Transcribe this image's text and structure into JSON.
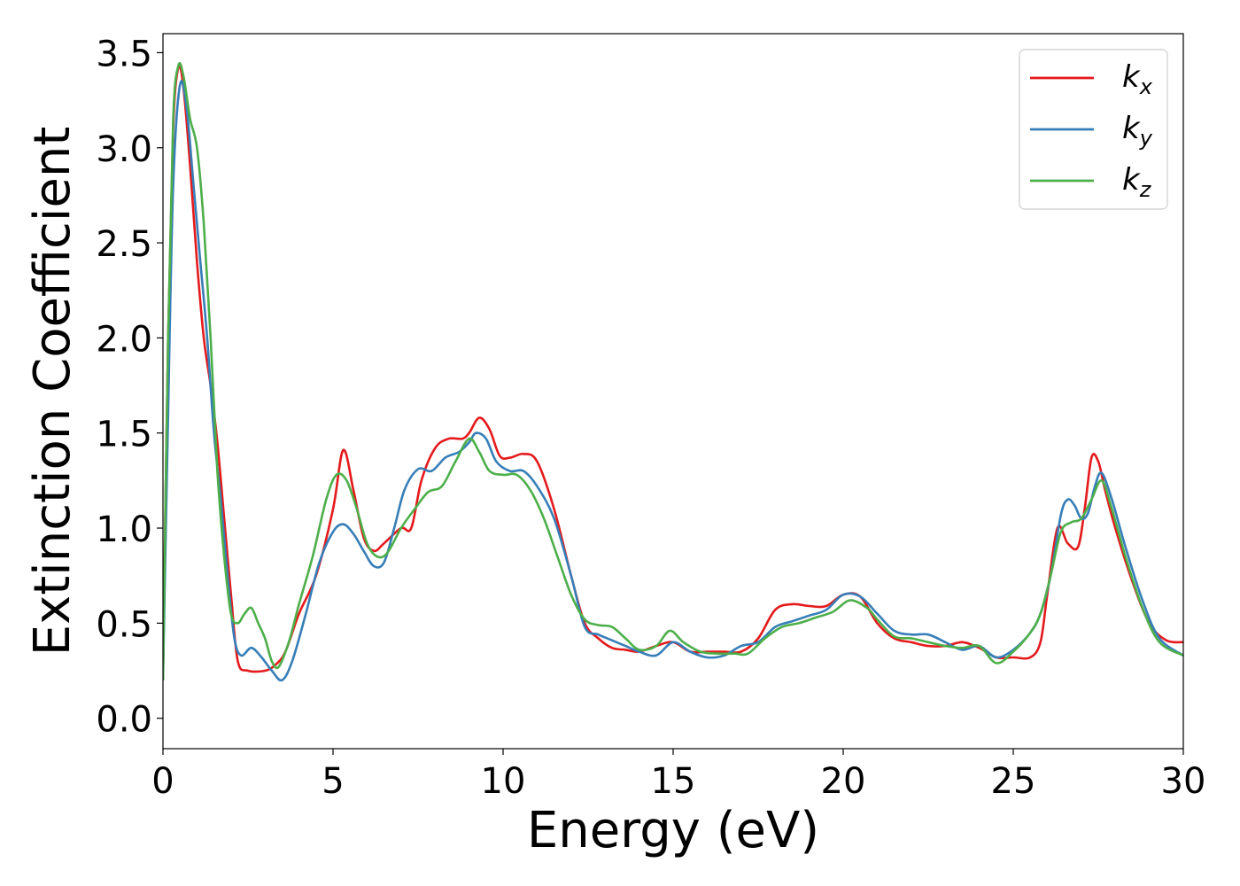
{
  "chart_data": {
    "type": "line",
    "title": "",
    "xlabel": "Energy (eV)",
    "ylabel": "Extinction Coefficient",
    "xlim": [
      0,
      30
    ],
    "ylim": [
      -0.16,
      3.6
    ],
    "xticks": [
      0,
      5,
      10,
      15,
      20,
      25,
      30
    ],
    "yticks": [
      0.0,
      0.5,
      1.0,
      1.5,
      2.0,
      2.5,
      3.0,
      3.5
    ],
    "xtick_labels": [
      "0",
      "5",
      "10",
      "15",
      "20",
      "25",
      "30"
    ],
    "ytick_labels": [
      "0.0",
      "0.5",
      "1.0",
      "1.5",
      "2.0",
      "2.5",
      "3.0",
      "3.5"
    ],
    "grid": false,
    "legend_position": "top-right",
    "series": [
      {
        "name": "k_x",
        "color": "#e41a1c",
        "x": [
          0,
          0.15,
          0.3,
          0.45,
          0.6,
          0.8,
          1.0,
          1.2,
          1.4,
          1.6,
          1.8,
          2.0,
          2.2,
          2.5,
          3.0,
          3.3,
          3.6,
          4.0,
          4.5,
          5.0,
          5.3,
          5.6,
          5.9,
          6.2,
          6.5,
          7.0,
          7.3,
          7.6,
          8.0,
          8.4,
          8.8,
          9.0,
          9.3,
          9.6,
          9.9,
          10.2,
          10.6,
          11.0,
          11.5,
          12.0,
          12.4,
          12.8,
          13.2,
          13.6,
          14.0,
          14.5,
          15.0,
          15.5,
          16.0,
          16.5,
          17.0,
          17.5,
          18.0,
          18.5,
          19.0,
          19.5,
          20.0,
          20.5,
          21.0,
          21.5,
          22.0,
          22.5,
          23.0,
          23.5,
          24.0,
          24.5,
          25.0,
          25.5,
          25.8,
          26.0,
          26.3,
          26.6,
          26.9,
          27.1,
          27.3,
          27.5,
          27.7,
          28.0,
          28.5,
          29.0,
          29.5,
          30.0
        ],
        "values": [
          0.2,
          2.0,
          3.1,
          3.42,
          3.32,
          2.9,
          2.4,
          2.0,
          1.75,
          1.45,
          1.05,
          0.65,
          0.3,
          0.25,
          0.25,
          0.28,
          0.35,
          0.55,
          0.75,
          1.1,
          1.41,
          1.2,
          0.95,
          0.88,
          0.92,
          1.0,
          1.0,
          1.25,
          1.42,
          1.47,
          1.47,
          1.5,
          1.58,
          1.52,
          1.38,
          1.37,
          1.39,
          1.35,
          1.1,
          0.75,
          0.5,
          0.42,
          0.37,
          0.36,
          0.35,
          0.38,
          0.4,
          0.35,
          0.35,
          0.35,
          0.35,
          0.42,
          0.57,
          0.6,
          0.59,
          0.59,
          0.65,
          0.64,
          0.5,
          0.42,
          0.4,
          0.38,
          0.38,
          0.4,
          0.37,
          0.32,
          0.32,
          0.32,
          0.4,
          0.65,
          1.0,
          0.92,
          0.9,
          1.1,
          1.37,
          1.35,
          1.2,
          1.0,
          0.72,
          0.5,
          0.41,
          0.4
        ]
      },
      {
        "name": "k_y",
        "color": "#377eb8",
        "x": [
          0,
          0.15,
          0.3,
          0.5,
          0.7,
          0.9,
          1.1,
          1.3,
          1.5,
          1.7,
          1.9,
          2.1,
          2.3,
          2.6,
          2.9,
          3.2,
          3.5,
          3.8,
          4.2,
          4.6,
          5.0,
          5.3,
          5.6,
          5.9,
          6.2,
          6.5,
          6.8,
          7.1,
          7.5,
          7.9,
          8.3,
          8.7,
          9.0,
          9.2,
          9.5,
          9.8,
          10.2,
          10.6,
          11.0,
          11.5,
          12.0,
          12.4,
          12.8,
          13.2,
          13.6,
          14.0,
          14.5,
          15.0,
          15.5,
          16.0,
          16.5,
          17.0,
          17.5,
          18.0,
          18.5,
          19.0,
          19.5,
          20.0,
          20.5,
          21.0,
          21.5,
          22.0,
          22.5,
          23.0,
          23.5,
          24.0,
          24.5,
          25.0,
          25.5,
          25.8,
          26.1,
          26.4,
          26.6,
          26.8,
          27.0,
          27.2,
          27.4,
          27.6,
          27.9,
          28.3,
          28.8,
          29.3,
          30.0
        ],
        "values": [
          0.2,
          1.6,
          2.8,
          3.33,
          3.2,
          2.8,
          2.4,
          2.0,
          1.5,
          1.15,
          0.75,
          0.42,
          0.33,
          0.37,
          0.32,
          0.25,
          0.2,
          0.3,
          0.55,
          0.82,
          0.98,
          1.02,
          0.97,
          0.88,
          0.8,
          0.82,
          1.0,
          1.2,
          1.31,
          1.3,
          1.37,
          1.4,
          1.45,
          1.5,
          1.47,
          1.35,
          1.3,
          1.3,
          1.22,
          1.05,
          0.75,
          0.48,
          0.44,
          0.41,
          0.38,
          0.35,
          0.33,
          0.4,
          0.35,
          0.32,
          0.33,
          0.38,
          0.4,
          0.48,
          0.51,
          0.54,
          0.57,
          0.65,
          0.64,
          0.55,
          0.46,
          0.44,
          0.44,
          0.4,
          0.36,
          0.38,
          0.32,
          0.36,
          0.45,
          0.55,
          0.75,
          1.07,
          1.15,
          1.12,
          1.05,
          1.08,
          1.22,
          1.29,
          1.15,
          0.9,
          0.62,
          0.42,
          0.33
        ]
      },
      {
        "name": "k_z",
        "color": "#4daf4a",
        "x": [
          0,
          0.15,
          0.3,
          0.45,
          0.6,
          0.8,
          1.0,
          1.2,
          1.4,
          1.6,
          1.8,
          2.0,
          2.2,
          2.4,
          2.6,
          2.8,
          3.0,
          3.2,
          3.4,
          3.7,
          4.0,
          4.4,
          4.8,
          5.1,
          5.4,
          5.7,
          6.0,
          6.3,
          6.6,
          7.0,
          7.4,
          7.8,
          8.2,
          8.6,
          9.0,
          9.3,
          9.6,
          10.0,
          10.4,
          10.8,
          11.2,
          11.6,
          12.0,
          12.4,
          12.8,
          13.2,
          13.6,
          14.0,
          14.5,
          14.9,
          15.3,
          15.8,
          16.3,
          16.8,
          17.2,
          17.7,
          18.2,
          18.7,
          19.2,
          19.7,
          20.2,
          20.7,
          21.0,
          21.5,
          22.0,
          22.5,
          23.0,
          23.5,
          24.0,
          24.5,
          25.0,
          25.5,
          25.8,
          26.1,
          26.4,
          26.7,
          27.0,
          27.3,
          27.6,
          27.9,
          28.3,
          28.8,
          29.3,
          30.0
        ],
        "values": [
          0.2,
          2.0,
          3.15,
          3.43,
          3.38,
          3.15,
          3.0,
          2.6,
          2.0,
          1.3,
          0.85,
          0.55,
          0.5,
          0.55,
          0.58,
          0.5,
          0.42,
          0.3,
          0.27,
          0.4,
          0.6,
          0.85,
          1.15,
          1.28,
          1.25,
          1.1,
          0.92,
          0.85,
          0.87,
          1.0,
          1.1,
          1.19,
          1.22,
          1.35,
          1.47,
          1.4,
          1.3,
          1.28,
          1.28,
          1.2,
          1.05,
          0.85,
          0.65,
          0.52,
          0.49,
          0.48,
          0.42,
          0.36,
          0.38,
          0.46,
          0.4,
          0.35,
          0.34,
          0.34,
          0.34,
          0.42,
          0.48,
          0.5,
          0.53,
          0.56,
          0.62,
          0.58,
          0.52,
          0.43,
          0.42,
          0.4,
          0.38,
          0.37,
          0.38,
          0.29,
          0.35,
          0.45,
          0.55,
          0.75,
          0.98,
          1.03,
          1.05,
          1.15,
          1.25,
          1.1,
          0.85,
          0.58,
          0.4,
          0.33
        ]
      }
    ]
  }
}
